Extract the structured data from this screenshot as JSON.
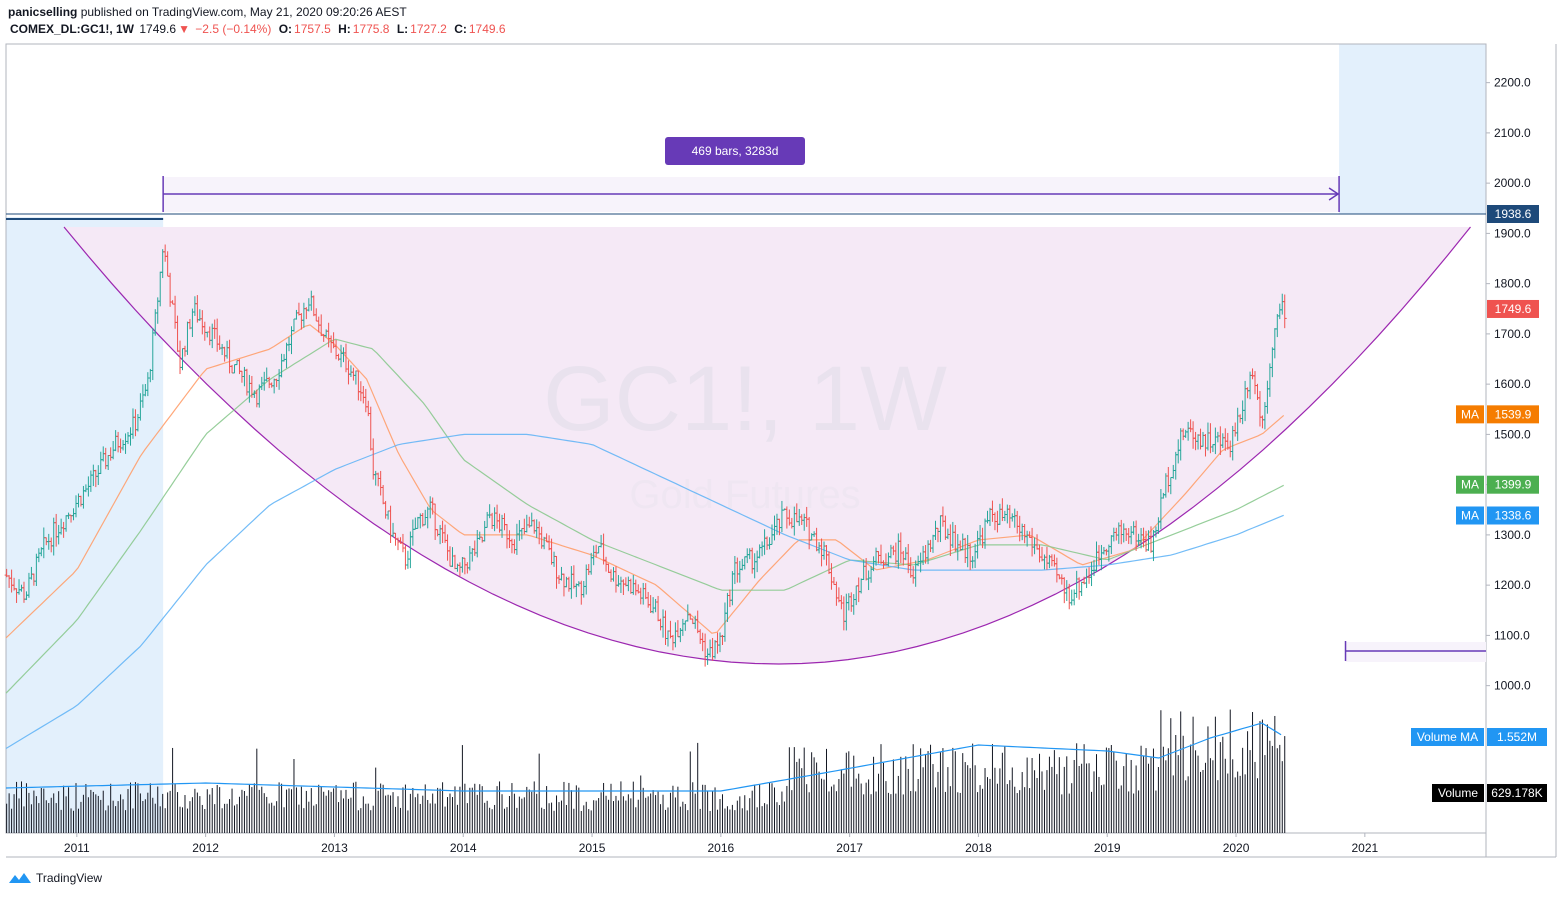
{
  "header": {
    "author": "panicselling",
    "published": "published on TradingView.com, May 21, 2020 09:20:26 AEST",
    "symbol": "COMEX_DL:GC1!, 1W",
    "last": "1749.6",
    "change": "−2.5 (−0.14%)",
    "open_label": "O:",
    "open": "1757.5",
    "high_label": "H:",
    "high": "1775.8",
    "low_label": "L:",
    "low": "1727.2",
    "close_label": "C:",
    "close": "1749.6"
  },
  "watermark": {
    "symbol": "GC1!, 1W",
    "name": "Gold Futures"
  },
  "measure": {
    "label": "469 bars, 3283d"
  },
  "colors": {
    "bar_up": "#26a69a",
    "bar_down": "#ef5350",
    "ma_short": "#ff9e6b",
    "ma_mid": "#8bc98f",
    "ma_long": "#64b5f6",
    "volume": "#131722",
    "volume_ma": "#2196f3",
    "purple": "#673ab7",
    "arc": "#9c27b0",
    "shade_blue": "#e3f0fc",
    "shade_pink": "#f5e9f6"
  },
  "price_tags": [
    {
      "label": "",
      "value": "1938.6",
      "price": 1938.6,
      "color": "#1e4a7a"
    },
    {
      "label": "",
      "value": "1749.6",
      "price": 1749.6,
      "color": "#ef5350"
    },
    {
      "label": "MA",
      "value": "1539.9",
      "price": 1539.9,
      "color": "#f57c00"
    },
    {
      "label": "MA",
      "value": "1399.9",
      "price": 1399.9,
      "color": "#4caf50"
    },
    {
      "label": "MA",
      "value": "1338.6",
      "price": 1338.6,
      "color": "#2196f3"
    }
  ],
  "volume_tags": [
    {
      "label": "Volume MA",
      "value": "1.552M",
      "color": "#2196f3"
    },
    {
      "label": "Volume",
      "value": "629.178K",
      "color": "#000000"
    }
  ],
  "footer": {
    "brand": "TradingView"
  },
  "chart_data": {
    "type": "line",
    "ylim": [
      950,
      2250
    ],
    "y_ticks": [
      1000,
      1100,
      1200,
      1300,
      1400,
      1500,
      1600,
      1700,
      1800,
      1900,
      2000,
      2100,
      2200
    ],
    "y_tick_labels": [
      "1000.0",
      "1100.0",
      "1200.0",
      "1300.0",
      "1400.0",
      "1500.0",
      "1600.0",
      "1700.0",
      "1800.0",
      "1900.0",
      "2000.0",
      "2100.0",
      "2200.0"
    ],
    "x_ticks": [
      2011,
      2012,
      2013,
      2014,
      2015,
      2016,
      2017,
      2018,
      2019,
      2020,
      2021
    ],
    "x_tick_labels": [
      "2011",
      "2012",
      "2013",
      "2014",
      "2015",
      "2016",
      "2017",
      "2018",
      "2019",
      "2020",
      "2021"
    ],
    "xlim": [
      2010.45,
      2021.95
    ],
    "price_anchors": [
      [
        2010.45,
        1220
      ],
      [
        2010.6,
        1180
      ],
      [
        2010.75,
        1280
      ],
      [
        2010.95,
        1350
      ],
      [
        2011.1,
        1400
      ],
      [
        2011.3,
        1480
      ],
      [
        2011.45,
        1520
      ],
      [
        2011.55,
        1600
      ],
      [
        2011.62,
        1750
      ],
      [
        2011.67,
        1880
      ],
      [
        2011.8,
        1640
      ],
      [
        2011.9,
        1750
      ],
      [
        2012.05,
        1700
      ],
      [
        2012.2,
        1640
      ],
      [
        2012.4,
        1580
      ],
      [
        2012.55,
        1620
      ],
      [
        2012.7,
        1720
      ],
      [
        2012.8,
        1770
      ],
      [
        2012.95,
        1680
      ],
      [
        2013.1,
        1640
      ],
      [
        2013.25,
        1570
      ],
      [
        2013.3,
        1430
      ],
      [
        2013.45,
        1300
      ],
      [
        2013.55,
        1250
      ],
      [
        2013.65,
        1330
      ],
      [
        2013.75,
        1350
      ],
      [
        2013.95,
        1220
      ],
      [
        2014.15,
        1290
      ],
      [
        2014.2,
        1340
      ],
      [
        2014.4,
        1290
      ],
      [
        2014.55,
        1320
      ],
      [
        2014.75,
        1220
      ],
      [
        2014.9,
        1190
      ],
      [
        2015.05,
        1280
      ],
      [
        2015.15,
        1220
      ],
      [
        2015.3,
        1200
      ],
      [
        2015.5,
        1150
      ],
      [
        2015.6,
        1090
      ],
      [
        2015.75,
        1150
      ],
      [
        2015.9,
        1060
      ],
      [
        2016.0,
        1090
      ],
      [
        2016.1,
        1230
      ],
      [
        2016.3,
        1260
      ],
      [
        2016.5,
        1340
      ],
      [
        2016.65,
        1320
      ],
      [
        2016.8,
        1270
      ],
      [
        2016.95,
        1140
      ],
      [
        2017.05,
        1200
      ],
      [
        2017.2,
        1250
      ],
      [
        2017.4,
        1270
      ],
      [
        2017.5,
        1220
      ],
      [
        2017.7,
        1320
      ],
      [
        2017.85,
        1280
      ],
      [
        2017.95,
        1260
      ],
      [
        2018.1,
        1340
      ],
      [
        2018.25,
        1330
      ],
      [
        2018.4,
        1290
      ],
      [
        2018.6,
        1220
      ],
      [
        2018.7,
        1180
      ],
      [
        2018.85,
        1220
      ],
      [
        2019.0,
        1290
      ],
      [
        2019.15,
        1310
      ],
      [
        2019.35,
        1280
      ],
      [
        2019.45,
        1400
      ],
      [
        2019.6,
        1510
      ],
      [
        2019.75,
        1490
      ],
      [
        2019.95,
        1480
      ],
      [
        2020.05,
        1560
      ],
      [
        2020.12,
        1640
      ],
      [
        2020.2,
        1520
      ],
      [
        2020.28,
        1680
      ],
      [
        2020.33,
        1740
      ],
      [
        2020.38,
        1750
      ]
    ],
    "series": [
      {
        "key": "ma_short",
        "anchors": [
          [
            2010.45,
            1095
          ],
          [
            2011.0,
            1230
          ],
          [
            2011.5,
            1460
          ],
          [
            2012.0,
            1630
          ],
          [
            2012.5,
            1670
          ],
          [
            2012.8,
            1720
          ],
          [
            2013.0,
            1680
          ],
          [
            2013.25,
            1610
          ],
          [
            2013.5,
            1460
          ],
          [
            2013.75,
            1350
          ],
          [
            2014.0,
            1300
          ],
          [
            2014.5,
            1300
          ],
          [
            2015.0,
            1260
          ],
          [
            2015.5,
            1200
          ],
          [
            2015.95,
            1100
          ],
          [
            2016.3,
            1210
          ],
          [
            2016.6,
            1290
          ],
          [
            2016.9,
            1290
          ],
          [
            2017.2,
            1230
          ],
          [
            2017.6,
            1250
          ],
          [
            2018.0,
            1290
          ],
          [
            2018.4,
            1300
          ],
          [
            2018.8,
            1240
          ],
          [
            2019.2,
            1270
          ],
          [
            2019.6,
            1380
          ],
          [
            2019.9,
            1470
          ],
          [
            2020.2,
            1500
          ],
          [
            2020.38,
            1540
          ]
        ]
      },
      {
        "key": "ma_mid",
        "anchors": [
          [
            2010.45,
            985
          ],
          [
            2011.0,
            1130
          ],
          [
            2011.5,
            1310
          ],
          [
            2012.0,
            1500
          ],
          [
            2012.5,
            1610
          ],
          [
            2013.0,
            1690
          ],
          [
            2013.3,
            1670
          ],
          [
            2013.7,
            1560
          ],
          [
            2014.0,
            1450
          ],
          [
            2014.5,
            1360
          ],
          [
            2015.0,
            1290
          ],
          [
            2015.5,
            1240
          ],
          [
            2016.0,
            1190
          ],
          [
            2016.5,
            1190
          ],
          [
            2017.0,
            1250
          ],
          [
            2017.5,
            1240
          ],
          [
            2018.0,
            1280
          ],
          [
            2018.5,
            1280
          ],
          [
            2019.0,
            1250
          ],
          [
            2019.5,
            1300
          ],
          [
            2020.0,
            1350
          ],
          [
            2020.38,
            1400
          ]
        ]
      },
      {
        "key": "ma_long",
        "anchors": [
          [
            2010.45,
            875
          ],
          [
            2011.0,
            960
          ],
          [
            2011.5,
            1080
          ],
          [
            2012.0,
            1240
          ],
          [
            2012.5,
            1360
          ],
          [
            2013.0,
            1430
          ],
          [
            2013.5,
            1480
          ],
          [
            2014.0,
            1500
          ],
          [
            2014.5,
            1500
          ],
          [
            2015.0,
            1480
          ],
          [
            2015.5,
            1420
          ],
          [
            2016.0,
            1360
          ],
          [
            2016.5,
            1300
          ],
          [
            2017.0,
            1250
          ],
          [
            2017.5,
            1230
          ],
          [
            2018.0,
            1230
          ],
          [
            2018.5,
            1230
          ],
          [
            2019.0,
            1240
          ],
          [
            2019.5,
            1260
          ],
          [
            2020.0,
            1300
          ],
          [
            2020.38,
            1340
          ]
        ]
      }
    ]
  }
}
